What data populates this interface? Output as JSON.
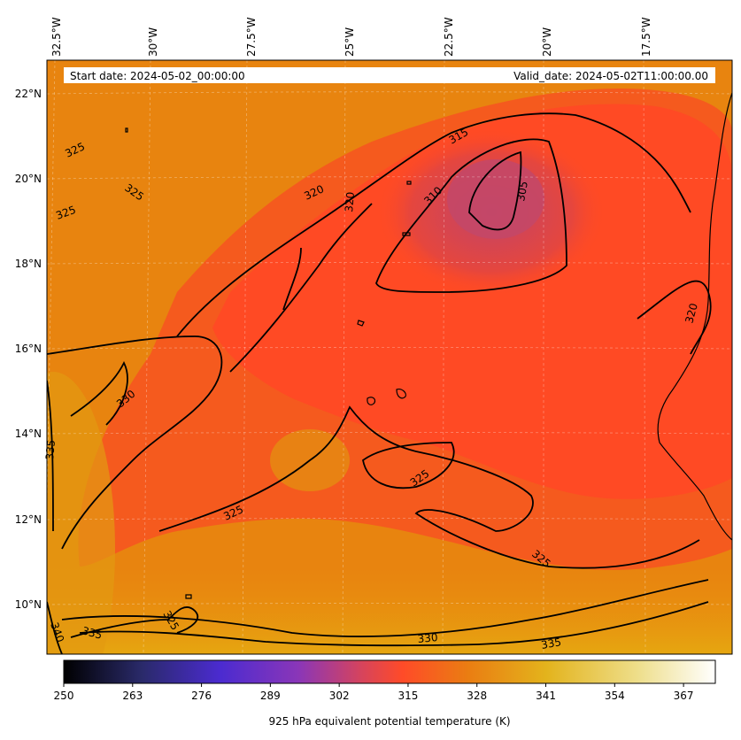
{
  "header": {
    "start_label": "Start date: 2024-05-02_00:00:00",
    "valid_label": "Valid_date: 2024-05-02T11:00:00.00"
  },
  "axes": {
    "lon_ticks": [
      "32.5°W",
      "30°W",
      "27.5°W",
      "25°W",
      "22.5°W",
      "20°W",
      "17.5°W"
    ],
    "lat_ticks": [
      "22°N",
      "20°N",
      "18°N",
      "16°N",
      "14°N",
      "12°N",
      "10°N"
    ]
  },
  "colorbar": {
    "label": "925 hPa equivalent potential temperature (K)",
    "ticks": [
      "250",
      "263",
      "276",
      "289",
      "302",
      "315",
      "328",
      "341",
      "354",
      "367"
    ],
    "range": [
      250,
      373
    ],
    "colormap": "CMRmap",
    "stops": [
      "#000000",
      "#2a2a66",
      "#4b2bd0",
      "#a23c9f",
      "#ff4b28",
      "#e78b10",
      "#e3bf1e",
      "#f5f2c6",
      "#ffffff"
    ]
  },
  "contour_labels": [
    "305",
    "310",
    "315",
    "320",
    "320",
    "320",
    "325",
    "325",
    "325",
    "325",
    "325",
    "325",
    "325",
    "330",
    "330",
    "335",
    "335",
    "335",
    "340"
  ],
  "colors": {
    "field_cold": "#c94a66",
    "field_mid": "#ff4a24",
    "field_warm": "#e88210",
    "field_hot": "#e5a510",
    "contour": "#000000"
  }
}
